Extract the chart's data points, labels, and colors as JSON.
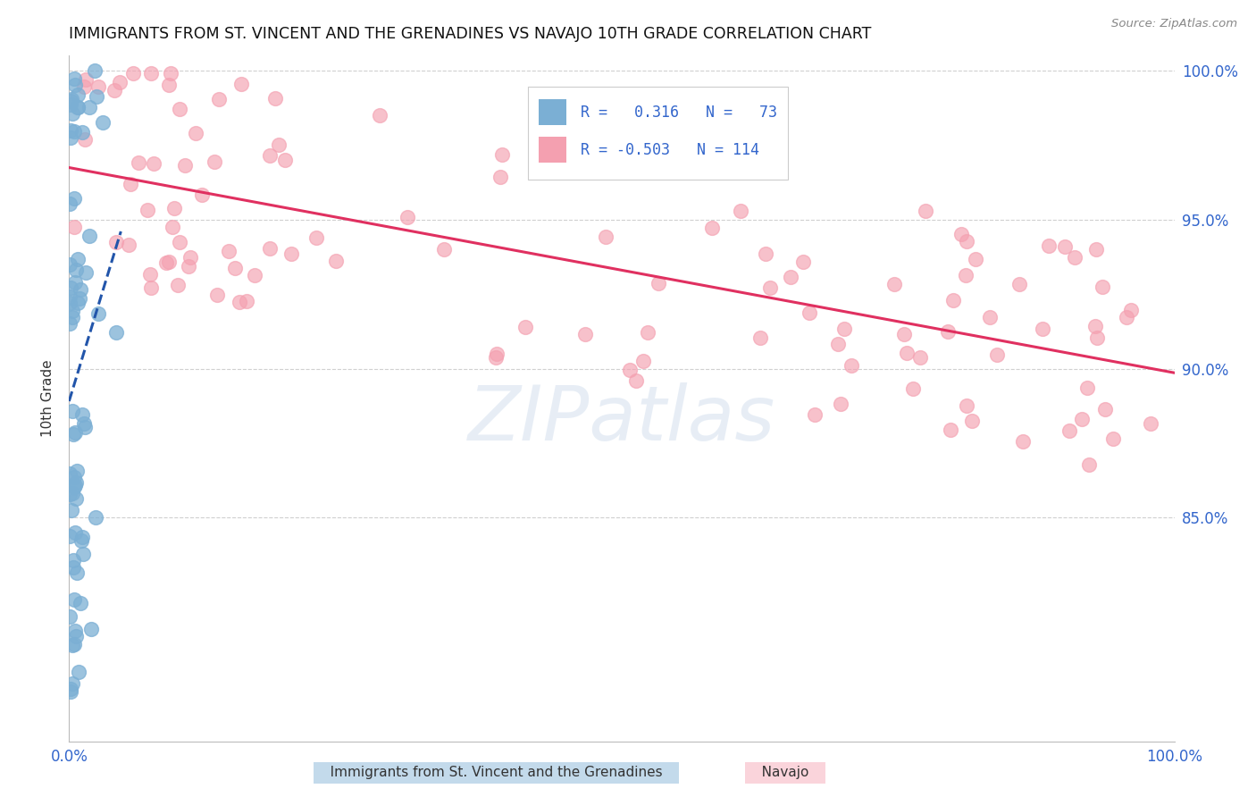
{
  "title": "IMMIGRANTS FROM ST. VINCENT AND THE GRENADINES VS NAVAJO 10TH GRADE CORRELATION CHART",
  "source": "Source: ZipAtlas.com",
  "ylabel": "10th Grade",
  "legend_blue_r": "0.316",
  "legend_blue_n": "73",
  "legend_pink_r": "-0.503",
  "legend_pink_n": "114",
  "blue_color": "#7BAFD4",
  "pink_color": "#F4A0B0",
  "blue_line_color": "#2255AA",
  "pink_line_color": "#E03060",
  "watermark_text": "ZIPatlas",
  "xlim": [
    0.0,
    1.0
  ],
  "ylim": [
    0.775,
    1.005
  ],
  "yticks": [
    1.0,
    0.95,
    0.9,
    0.85
  ],
  "ytick_labels": [
    "100.0%",
    "95.0%",
    "90.0%",
    "85.0%"
  ],
  "xtick_left_label": "0.0%",
  "xtick_right_label": "100.0%",
  "blue_seed": 12,
  "pink_seed": 7,
  "legend_bottom_blue": "Immigrants from St. Vincent and the Grenadines",
  "legend_bottom_pink": "Navajo"
}
